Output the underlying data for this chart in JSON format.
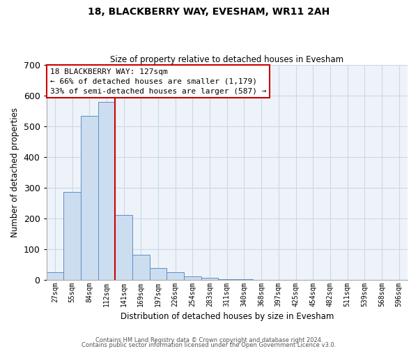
{
  "title": "18, BLACKBERRY WAY, EVESHAM, WR11 2AH",
  "subtitle": "Size of property relative to detached houses in Evesham",
  "xlabel": "Distribution of detached houses by size in Evesham",
  "ylabel": "Number of detached properties",
  "bar_labels": [
    "27sqm",
    "55sqm",
    "84sqm",
    "112sqm",
    "141sqm",
    "169sqm",
    "197sqm",
    "226sqm",
    "254sqm",
    "283sqm",
    "311sqm",
    "340sqm",
    "368sqm",
    "397sqm",
    "425sqm",
    "454sqm",
    "482sqm",
    "511sqm",
    "539sqm",
    "568sqm",
    "596sqm"
  ],
  "bar_values": [
    25,
    285,
    535,
    580,
    210,
    80,
    37,
    25,
    10,
    5,
    2,
    1,
    0,
    0,
    0,
    0,
    0,
    0,
    0,
    0,
    0
  ],
  "bar_color": "#ccddf0",
  "bar_edge_color": "#5a8fc6",
  "vline_x_idx": 3.5,
  "vline_color": "#cc0000",
  "ylim": [
    0,
    700
  ],
  "yticks": [
    0,
    100,
    200,
    300,
    400,
    500,
    600,
    700
  ],
  "annotation_title": "18 BLACKBERRY WAY: 127sqm",
  "annotation_line1": "← 66% of detached houses are smaller (1,179)",
  "annotation_line2": "33% of semi-detached houses are larger (587) →",
  "annotation_box_color": "#ffffff",
  "annotation_border_color": "#cc0000",
  "footer_line1": "Contains HM Land Registry data © Crown copyright and database right 2024.",
  "footer_line2": "Contains public sector information licensed under the Open Government Licence v3.0.",
  "grid_color": "#c8d8e8",
  "background_color": "#eef3fa"
}
